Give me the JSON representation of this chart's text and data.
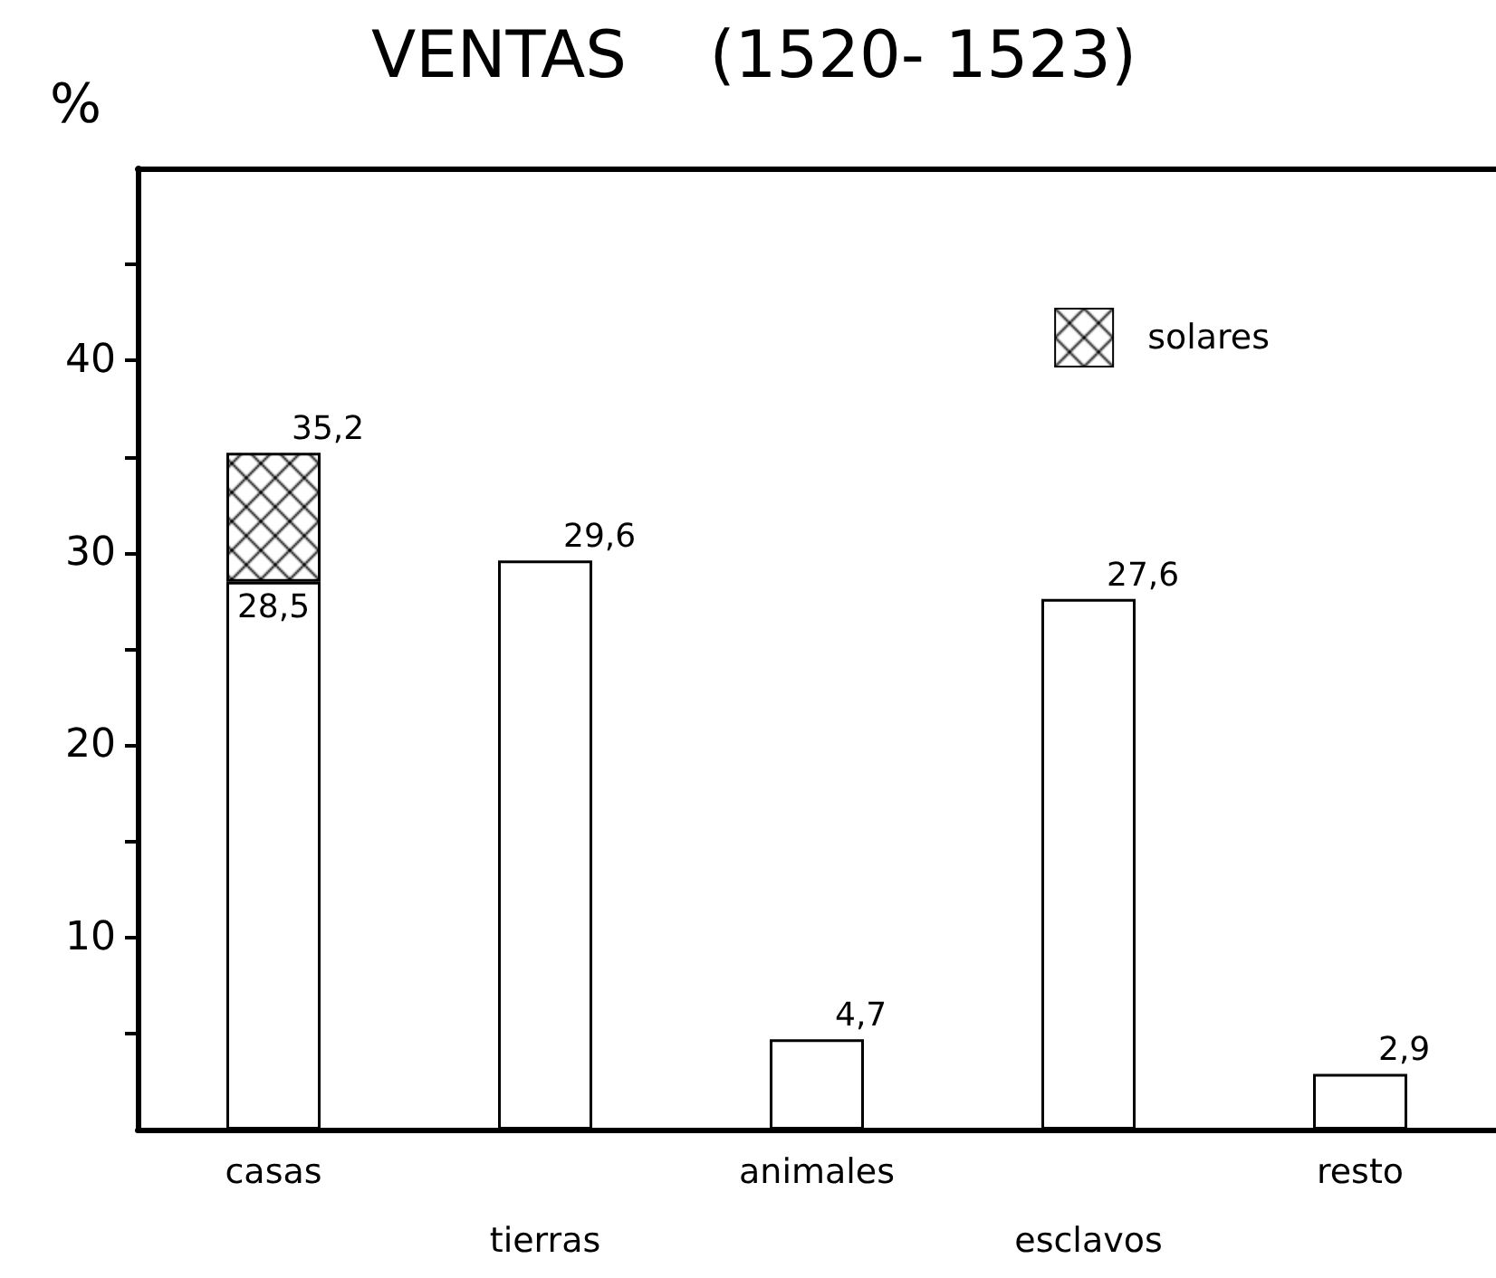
{
  "chart_data": {
    "type": "bar",
    "title": "VENTAS    (1520- 1523)",
    "ylabel": "%",
    "categories": [
      "casas",
      "tierras",
      "animales",
      "esclavos",
      "resto"
    ],
    "stacked": true,
    "series": [
      {
        "color": "#ffffff",
        "values": [
          28.5,
          29.6,
          4.7,
          27.6,
          2.9
        ],
        "value_labels": [
          "28,5",
          "29,6",
          "4,7",
          "27,6",
          "2,9"
        ]
      },
      {
        "name": "solares",
        "color": "#000000",
        "values": [
          6.7,
          null,
          null,
          null,
          null
        ]
      }
    ],
    "totals": [
      "35,2",
      null,
      null,
      null,
      null
    ],
    "ylim": [
      0,
      50
    ],
    "yticks": [
      {
        "value": 5,
        "label": null
      },
      10,
      {
        "value": 15,
        "label": null
      },
      20,
      {
        "value": 25,
        "label": null
      },
      30,
      {
        "value": 35,
        "label": null
      },
      40,
      {
        "value": 45,
        "label": null
      }
    ],
    "grid": false,
    "legend": "top right"
  }
}
